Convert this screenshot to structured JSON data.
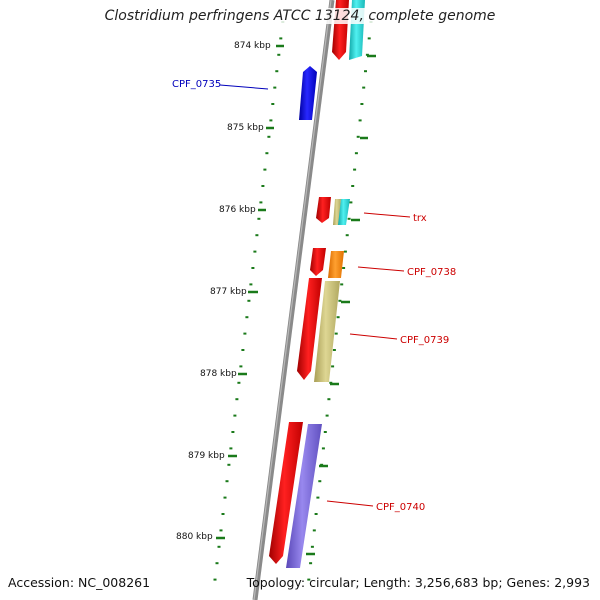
{
  "title": "Clostridium perfringens ATCC 13124, complete genome",
  "accession": "Accession: NC_008261",
  "summary": "Topology: circular; Length: 3,256,683 bp; Genes: 2,993",
  "colors": {
    "backbone": "#8a8a8a",
    "tick": "#1a7a1a",
    "red": "#ee0000",
    "cyan": "#22d8d8",
    "orange": "#ff8800",
    "khaki": "#c8c07a",
    "purple": "#7b68d8",
    "blue": "#0000dd",
    "label_red": "#cc0000",
    "label_blue": "#0000bb"
  },
  "kbp_labels": [
    "874 kbp",
    "875 kbp",
    "876 kbp",
    "877 kbp",
    "878 kbp",
    "879 kbp",
    "880 kbp"
  ],
  "gene_labels": {
    "cpf_0735": "CPF_0735",
    "trx": "trx",
    "cpf_0738": "CPF_0738",
    "cpf_0739": "CPF_0739",
    "cpf_0740": "CPF_0740"
  }
}
